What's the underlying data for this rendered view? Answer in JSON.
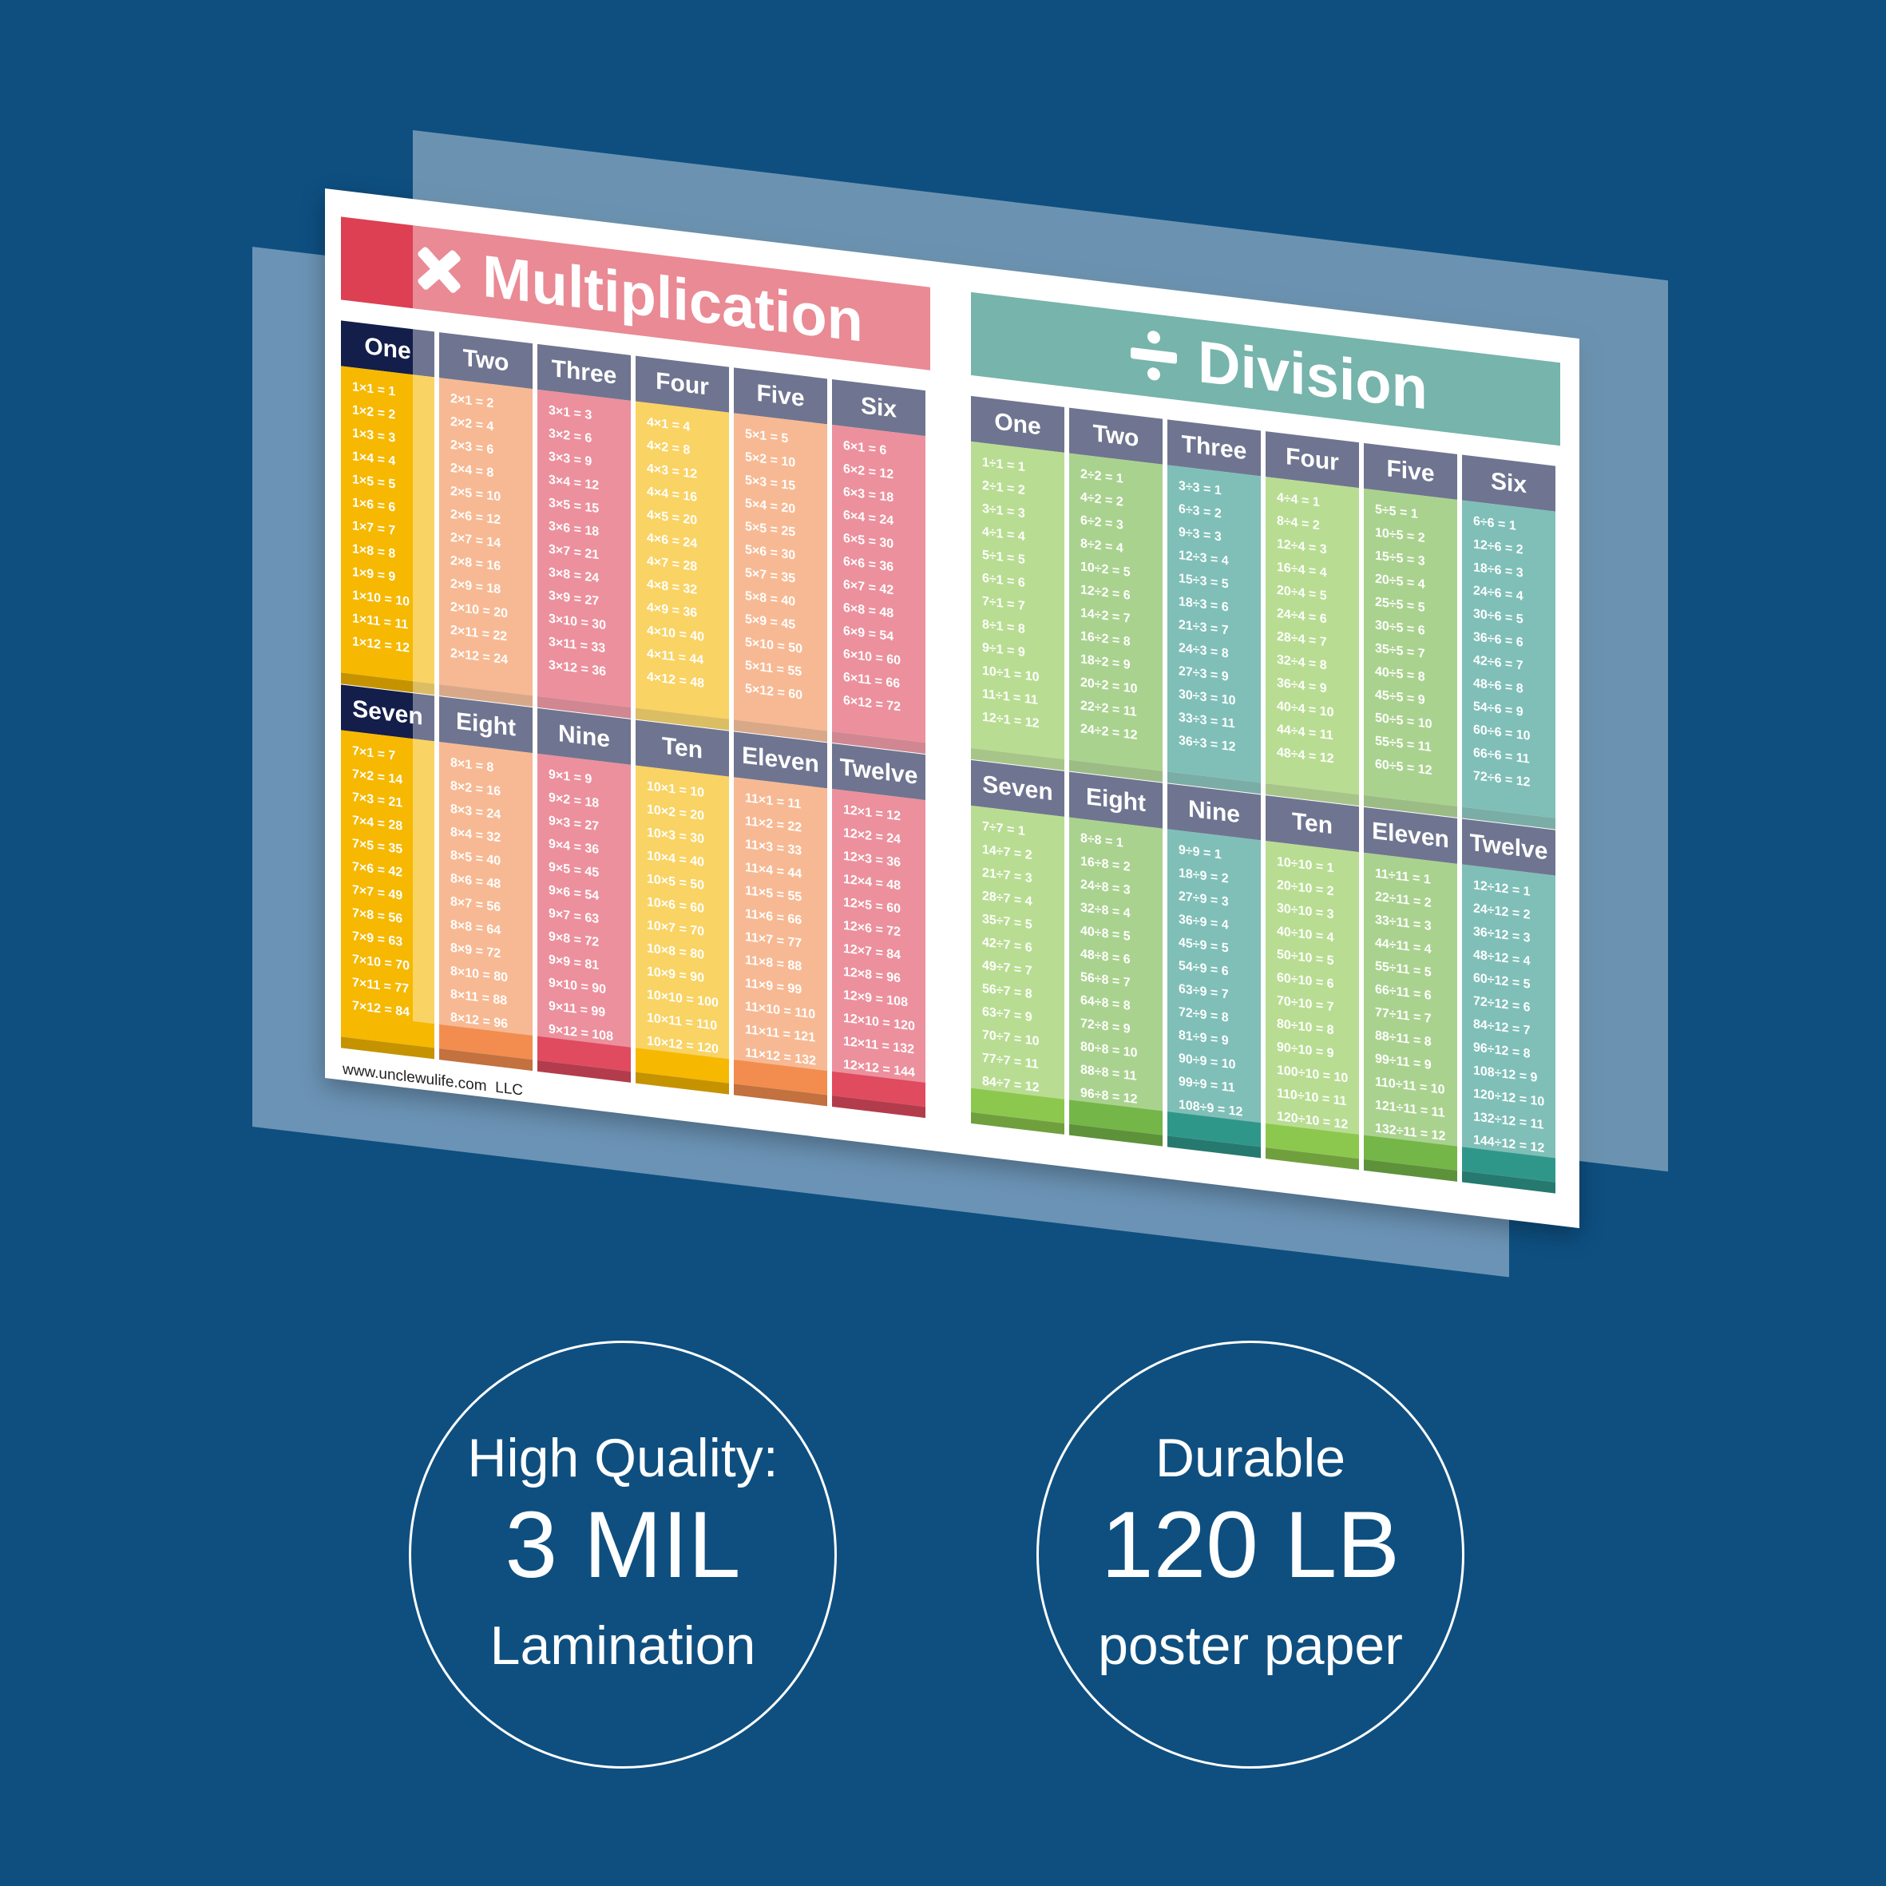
{
  "poster": {
    "multiplication": {
      "title": "Multiplication",
      "tables": [
        {
          "name": "One",
          "facts": [
            "1×1 = 1",
            "1×2 = 2",
            "1×3 = 3",
            "1×4 = 4",
            "1×5 = 5",
            "1×6 = 6",
            "1×7 = 7",
            "1×8 = 8",
            "1×9 = 9",
            "1×10 = 10",
            "1×11 = 11",
            "1×12 = 12"
          ]
        },
        {
          "name": "Two",
          "facts": [
            "2×1 = 2",
            "2×2 = 4",
            "2×3 = 6",
            "2×4 = 8",
            "2×5 = 10",
            "2×6 = 12",
            "2×7 = 14",
            "2×8 = 16",
            "2×9 = 18",
            "2×10 = 20",
            "2×11 = 22",
            "2×12 = 24"
          ]
        },
        {
          "name": "Three",
          "facts": [
            "3×1 = 3",
            "3×2 = 6",
            "3×3 = 9",
            "3×4 = 12",
            "3×5 = 15",
            "3×6 = 18",
            "3×7 = 21",
            "3×8 = 24",
            "3×9 = 27",
            "3×10 = 30",
            "3×11 = 33",
            "3×12 = 36"
          ]
        },
        {
          "name": "Four",
          "facts": [
            "4×1 = 4",
            "4×2 = 8",
            "4×3 = 12",
            "4×4 = 16",
            "4×5 = 20",
            "4×6 = 24",
            "4×7 = 28",
            "4×8 = 32",
            "4×9 = 36",
            "4×10 = 40",
            "4×11 = 44",
            "4×12 = 48"
          ]
        },
        {
          "name": "Five",
          "facts": [
            "5×1 = 5",
            "5×2 = 10",
            "5×3 = 15",
            "5×4 = 20",
            "5×5 = 25",
            "5×6 = 30",
            "5×7 = 35",
            "5×8 = 40",
            "5×9 = 45",
            "5×10 = 50",
            "5×11 = 55",
            "5×12 = 60"
          ]
        },
        {
          "name": "Six",
          "facts": [
            "6×1 = 6",
            "6×2 = 12",
            "6×3 = 18",
            "6×4 = 24",
            "6×5 = 30",
            "6×6 = 36",
            "6×7 = 42",
            "6×8 = 48",
            "6×9 = 54",
            "6×10 = 60",
            "6×11 = 66",
            "6×12 = 72"
          ]
        },
        {
          "name": "Seven",
          "facts": [
            "7×1 = 7",
            "7×2 = 14",
            "7×3 = 21",
            "7×4 = 28",
            "7×5 = 35",
            "7×6 = 42",
            "7×7 = 49",
            "7×8 = 56",
            "7×9 = 63",
            "7×10 = 70",
            "7×11 = 77",
            "7×12 = 84"
          ]
        },
        {
          "name": "Eight",
          "facts": [
            "8×1 = 8",
            "8×2 = 16",
            "8×3 = 24",
            "8×4 = 32",
            "8×5 = 40",
            "8×6 = 48",
            "8×7 = 56",
            "8×8 = 64",
            "8×9 = 72",
            "8×10 = 80",
            "8×11 = 88",
            "8×12 = 96"
          ]
        },
        {
          "name": "Nine",
          "facts": [
            "9×1 = 9",
            "9×2 = 18",
            "9×3 = 27",
            "9×4 = 36",
            "9×5 = 45",
            "9×6 = 54",
            "9×7 = 63",
            "9×8 = 72",
            "9×9 = 81",
            "9×10 = 90",
            "9×11 = 99",
            "9×12 = 108"
          ]
        },
        {
          "name": "Ten",
          "facts": [
            "10×1 = 10",
            "10×2 = 20",
            "10×3 = 30",
            "10×4 = 40",
            "10×5 = 50",
            "10×6 = 60",
            "10×7 = 70",
            "10×8 = 80",
            "10×9 = 90",
            "10×10 = 100",
            "10×11 = 110",
            "10×12 = 120"
          ]
        },
        {
          "name": "Eleven",
          "facts": [
            "11×1 = 11",
            "11×2 = 22",
            "11×3 = 33",
            "11×4 = 44",
            "11×5 = 55",
            "11×6 = 66",
            "11×7 = 77",
            "11×8 = 88",
            "11×9 = 99",
            "11×10 = 110",
            "11×11 = 121",
            "11×12 = 132"
          ]
        },
        {
          "name": "Twelve",
          "facts": [
            "12×1 = 12",
            "12×2 = 24",
            "12×3 = 36",
            "12×4 = 48",
            "12×5 = 60",
            "12×6 = 72",
            "12×7 = 84",
            "12×8 = 96",
            "12×9 = 108",
            "12×10 = 120",
            "12×11 = 132",
            "12×12 = 144"
          ]
        }
      ]
    },
    "division": {
      "title": "Division",
      "tables": [
        {
          "name": "One",
          "facts": [
            "1÷1 = 1",
            "2÷1 = 2",
            "3÷1 = 3",
            "4÷1 = 4",
            "5÷1 = 5",
            "6÷1 = 6",
            "7÷1 = 7",
            "8÷1 = 8",
            "9÷1 = 9",
            "10÷1 = 10",
            "11÷1 = 11",
            "12÷1 = 12"
          ]
        },
        {
          "name": "Two",
          "facts": [
            "2÷2 = 1",
            "4÷2 = 2",
            "6÷2 = 3",
            "8÷2 = 4",
            "10÷2 = 5",
            "12÷2 = 6",
            "14÷2 = 7",
            "16÷2 = 8",
            "18÷2 = 9",
            "20÷2 = 10",
            "22÷2 = 11",
            "24÷2 = 12"
          ]
        },
        {
          "name": "Three",
          "facts": [
            "3÷3 = 1",
            "6÷3 = 2",
            "9÷3 = 3",
            "12÷3 = 4",
            "15÷3 = 5",
            "18÷3 = 6",
            "21÷3 = 7",
            "24÷3 = 8",
            "27÷3 = 9",
            "30÷3 = 10",
            "33÷3 = 11",
            "36÷3 = 12"
          ]
        },
        {
          "name": "Four",
          "facts": [
            "4÷4 = 1",
            "8÷4 = 2",
            "12÷4 = 3",
            "16÷4 = 4",
            "20÷4 = 5",
            "24÷4 = 6",
            "28÷4 = 7",
            "32÷4 = 8",
            "36÷4 = 9",
            "40÷4 = 10",
            "44÷4 = 11",
            "48÷4 = 12"
          ]
        },
        {
          "name": "Five",
          "facts": [
            "5÷5 = 1",
            "10÷5 = 2",
            "15÷5 = 3",
            "20÷5 = 4",
            "25÷5 = 5",
            "30÷5 = 6",
            "35÷5 = 7",
            "40÷5 = 8",
            "45÷5 = 9",
            "50÷5 = 10",
            "55÷5 = 11",
            "60÷5 = 12"
          ]
        },
        {
          "name": "Six",
          "facts": [
            "6÷6 = 1",
            "12÷6 = 2",
            "18÷6 = 3",
            "24÷6 = 4",
            "30÷6 = 5",
            "36÷6 = 6",
            "42÷6 = 7",
            "48÷6 = 8",
            "54÷6 = 9",
            "60÷6 = 10",
            "66÷6 = 11",
            "72÷6 = 12"
          ]
        },
        {
          "name": "Seven",
          "facts": [
            "7÷7 = 1",
            "14÷7 = 2",
            "21÷7 = 3",
            "28÷7 = 4",
            "35÷7 = 5",
            "42÷7 = 6",
            "49÷7 = 7",
            "56÷7 = 8",
            "63÷7 = 9",
            "70÷7 = 10",
            "77÷7 = 11",
            "84÷7 = 12"
          ]
        },
        {
          "name": "Eight",
          "facts": [
            "8÷8 = 1",
            "16÷8 = 2",
            "24÷8 = 3",
            "32÷8 = 4",
            "40÷8 = 5",
            "48÷8 = 6",
            "56÷8 = 7",
            "64÷8 = 8",
            "72÷8 = 9",
            "80÷8 = 10",
            "88÷8 = 11",
            "96÷8 = 12"
          ]
        },
        {
          "name": "Nine",
          "facts": [
            "9÷9 = 1",
            "18÷9 = 2",
            "27÷9 = 3",
            "36÷9 = 4",
            "45÷9 = 5",
            "54÷9 = 6",
            "63÷9 = 7",
            "72÷9 = 8",
            "81÷9 = 9",
            "90÷9 = 10",
            "99÷9 = 11",
            "108÷9 = 12"
          ]
        },
        {
          "name": "Ten",
          "facts": [
            "10÷10 = 1",
            "20÷10 = 2",
            "30÷10 = 3",
            "40÷10 = 4",
            "50÷10 = 5",
            "60÷10 = 6",
            "70÷10 = 7",
            "80÷10 = 8",
            "90÷10 = 9",
            "100÷10 = 10",
            "110÷10 = 11",
            "120÷10 = 12"
          ]
        },
        {
          "name": "Eleven",
          "facts": [
            "11÷11 = 1",
            "22÷11 = 2",
            "33÷11 = 3",
            "44÷11 = 4",
            "55÷11 = 5",
            "66÷11 = 6",
            "77÷11 = 7",
            "88÷11 = 8",
            "99÷11 = 9",
            "110÷11 = 10",
            "121÷11 = 11",
            "132÷11 = 12"
          ]
        },
        {
          "name": "Twelve",
          "facts": [
            "12÷12 = 1",
            "24÷12 = 2",
            "36÷12 = 3",
            "48÷12 = 4",
            "60÷12 = 5",
            "72÷12 = 6",
            "84÷12 = 7",
            "96÷12 = 8",
            "108÷12 = 9",
            "120÷12 = 10",
            "132÷12 = 11",
            "144÷12 = 12"
          ]
        }
      ]
    },
    "footer": "www.unclewulife.com  LLC"
  },
  "badges": [
    {
      "lines": [
        "High Quality:",
        "3 MIL",
        "Lamination"
      ]
    },
    {
      "lines": [
        "Durable",
        "120 LB",
        "poster paper"
      ]
    }
  ]
}
